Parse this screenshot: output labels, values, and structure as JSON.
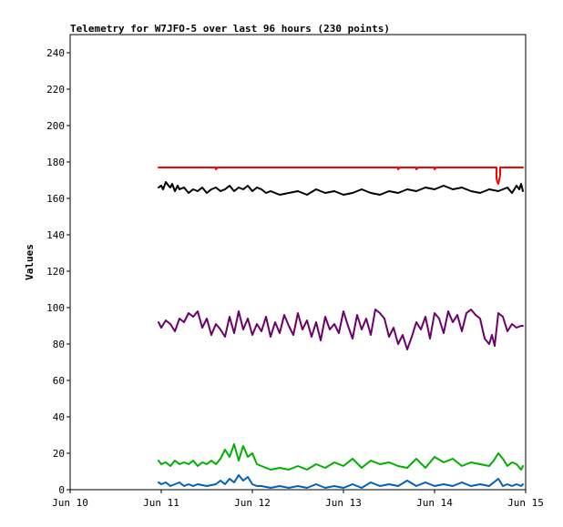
{
  "chart_data": {
    "type": "line",
    "title": "Telemetry for W7JFO-5 over last 96 hours (230 points)",
    "xlabel": "",
    "ylabel": "Values",
    "xlim": [
      "Jun 10",
      "Jun 15"
    ],
    "x_ticks": [
      "Jun 10",
      "Jun 11",
      "Jun 12",
      "Jun 13",
      "Jun 14",
      "Jun 15"
    ],
    "ylim": [
      0,
      250
    ],
    "y_ticks": [
      0,
      20,
      40,
      60,
      80,
      100,
      120,
      140,
      160,
      180,
      200,
      220,
      240
    ],
    "grid": false,
    "x_unit": "days since Jun 10",
    "series": [
      {
        "color": "#ff0000",
        "x": [
          0.97,
          1.6,
          1.6,
          1.62,
          3.6,
          3.6,
          3.62,
          3.8,
          3.8,
          3.82,
          4.0,
          4.0,
          4.02,
          4.68,
          4.68,
          4.69,
          4.7,
          4.71,
          4.72,
          4.72,
          4.97
        ],
        "values": [
          177,
          177,
          176,
          177,
          177,
          176,
          177,
          177,
          176,
          177,
          177,
          176,
          177,
          177,
          171,
          169,
          168,
          170,
          173,
          177,
          177
        ]
      },
      {
        "color": "#000000",
        "x": [
          0.97,
          1.0,
          1.02,
          1.05,
          1.08,
          1.1,
          1.12,
          1.15,
          1.18,
          1.2,
          1.25,
          1.3,
          1.35,
          1.4,
          1.45,
          1.5,
          1.55,
          1.6,
          1.65,
          1.7,
          1.75,
          1.8,
          1.85,
          1.9,
          1.95,
          2.0,
          2.05,
          2.1,
          2.15,
          2.2,
          2.3,
          2.4,
          2.5,
          2.6,
          2.7,
          2.8,
          2.9,
          3.0,
          3.1,
          3.2,
          3.3,
          3.4,
          3.5,
          3.6,
          3.7,
          3.8,
          3.9,
          4.0,
          4.1,
          4.2,
          4.3,
          4.4,
          4.5,
          4.6,
          4.7,
          4.8,
          4.85,
          4.9,
          4.93,
          4.95,
          4.97
        ],
        "values": [
          166,
          167,
          165,
          169,
          167,
          166,
          168,
          164,
          167,
          165,
          166,
          163,
          165,
          164,
          166,
          163,
          165,
          166,
          164,
          165,
          167,
          164,
          166,
          165,
          167,
          164,
          166,
          165,
          163,
          164,
          162,
          163,
          164,
          162,
          165,
          163,
          164,
          162,
          163,
          165,
          163,
          162,
          164,
          163,
          165,
          164,
          166,
          165,
          167,
          165,
          166,
          164,
          163,
          165,
          164,
          166,
          163,
          167,
          165,
          168,
          164
        ]
      },
      {
        "color": "#6b006b",
        "x": [
          0.97,
          1.0,
          1.05,
          1.1,
          1.15,
          1.2,
          1.25,
          1.3,
          1.35,
          1.4,
          1.45,
          1.5,
          1.55,
          1.6,
          1.65,
          1.7,
          1.75,
          1.8,
          1.85,
          1.9,
          1.95,
          2.0,
          2.05,
          2.1,
          2.15,
          2.2,
          2.25,
          2.3,
          2.35,
          2.4,
          2.45,
          2.5,
          2.55,
          2.6,
          2.65,
          2.7,
          2.75,
          2.8,
          2.85,
          2.9,
          2.95,
          3.0,
          3.05,
          3.1,
          3.15,
          3.2,
          3.25,
          3.3,
          3.35,
          3.4,
          3.45,
          3.5,
          3.55,
          3.6,
          3.65,
          3.7,
          3.75,
          3.8,
          3.85,
          3.9,
          3.95,
          4.0,
          4.05,
          4.1,
          4.15,
          4.2,
          4.25,
          4.3,
          4.35,
          4.4,
          4.45,
          4.5,
          4.55,
          4.6,
          4.63,
          4.66,
          4.7,
          4.75,
          4.8,
          4.85,
          4.9,
          4.95,
          4.97
        ],
        "values": [
          92,
          89,
          93,
          91,
          87,
          94,
          92,
          97,
          95,
          98,
          89,
          94,
          85,
          91,
          88,
          84,
          95,
          86,
          98,
          88,
          94,
          85,
          91,
          87,
          95,
          84,
          92,
          86,
          96,
          90,
          85,
          97,
          88,
          93,
          84,
          92,
          82,
          95,
          88,
          91,
          86,
          98,
          90,
          83,
          96,
          88,
          94,
          85,
          99,
          97,
          94,
          84,
          89,
          80,
          85,
          77,
          84,
          92,
          88,
          95,
          83,
          97,
          94,
          86,
          98,
          92,
          96,
          87,
          97,
          99,
          96,
          94,
          83,
          80,
          85,
          79,
          97,
          95,
          87,
          91,
          89,
          90,
          90
        ]
      },
      {
        "color": "#00b000",
        "x": [
          0.97,
          1.0,
          1.05,
          1.1,
          1.15,
          1.2,
          1.25,
          1.3,
          1.35,
          1.4,
          1.45,
          1.5,
          1.55,
          1.6,
          1.65,
          1.7,
          1.75,
          1.8,
          1.85,
          1.9,
          1.95,
          2.0,
          2.05,
          2.1,
          2.15,
          2.2,
          2.3,
          2.4,
          2.5,
          2.6,
          2.7,
          2.8,
          2.9,
          3.0,
          3.1,
          3.2,
          3.3,
          3.4,
          3.5,
          3.6,
          3.7,
          3.8,
          3.9,
          4.0,
          4.1,
          4.2,
          4.3,
          4.4,
          4.5,
          4.6,
          4.65,
          4.7,
          4.75,
          4.8,
          4.85,
          4.9,
          4.95,
          4.97
        ],
        "values": [
          16,
          14,
          15,
          13,
          16,
          14,
          15,
          14,
          16,
          13,
          15,
          14,
          16,
          14,
          17,
          22,
          18,
          25,
          16,
          24,
          18,
          20,
          14,
          13,
          12,
          11,
          12,
          11,
          13,
          11,
          14,
          12,
          15,
          13,
          17,
          12,
          16,
          14,
          15,
          13,
          12,
          17,
          12,
          18,
          15,
          17,
          13,
          15,
          14,
          13,
          16,
          20,
          17,
          13,
          15,
          14,
          11,
          13
        ]
      },
      {
        "color": "#0060c0",
        "x": [
          0.97,
          1.0,
          1.05,
          1.1,
          1.15,
          1.2,
          1.25,
          1.3,
          1.35,
          1.4,
          1.5,
          1.6,
          1.65,
          1.7,
          1.75,
          1.8,
          1.85,
          1.9,
          1.95,
          2.0,
          2.05,
          2.1,
          2.2,
          2.3,
          2.4,
          2.5,
          2.6,
          2.7,
          2.8,
          2.9,
          3.0,
          3.1,
          3.2,
          3.3,
          3.4,
          3.5,
          3.6,
          3.7,
          3.8,
          3.9,
          4.0,
          4.1,
          4.2,
          4.3,
          4.4,
          4.5,
          4.6,
          4.65,
          4.7,
          4.75,
          4.8,
          4.85,
          4.9,
          4.95,
          4.97
        ],
        "values": [
          4,
          3,
          4,
          2,
          3,
          4,
          2,
          3,
          2,
          3,
          2,
          3,
          5,
          3,
          6,
          4,
          8,
          5,
          7,
          3,
          2,
          2,
          1,
          2,
          1,
          2,
          1,
          3,
          1,
          2,
          1,
          3,
          1,
          4,
          2,
          3,
          2,
          5,
          2,
          4,
          2,
          3,
          2,
          4,
          2,
          3,
          2,
          4,
          6,
          2,
          3,
          2,
          3,
          2,
          3
        ]
      }
    ]
  }
}
